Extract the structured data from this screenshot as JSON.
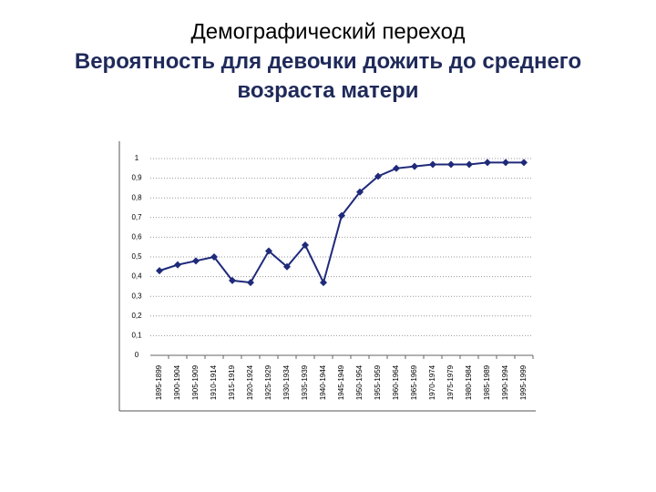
{
  "chart_data": {
    "type": "line",
    "title": "Демографический переход",
    "subtitle": "Вероятность для девочки дожить до среднего возраста матери",
    "categories": [
      "1895-1899",
      "1900-1904",
      "1905-1909",
      "1910-1914",
      "1915-1919",
      "1920-1924",
      "1925-1929",
      "1930-1934",
      "1935-1939",
      "1940-1944",
      "1945-1949",
      "1950-1954",
      "1955-1959",
      "1960-1964",
      "1965-1969",
      "1970-1974",
      "1975-1979",
      "1980-1984",
      "1985-1989",
      "1990-1994",
      "1995-1999"
    ],
    "values": [
      0.43,
      0.46,
      0.48,
      0.5,
      0.38,
      0.37,
      0.53,
      0.45,
      0.56,
      0.37,
      0.71,
      0.83,
      0.91,
      0.95,
      0.96,
      0.97,
      0.97,
      0.97,
      0.98,
      0.98,
      0.98
    ],
    "color": "#1f2a7a",
    "ylim": [
      0,
      1
    ],
    "yticks": [
      0,
      {
        "value": 0.1,
        "label": "0,1"
      },
      {
        "value": 0.2,
        "label": "0,2"
      },
      {
        "value": 0.3,
        "label": "0,3"
      },
      {
        "value": 0.4,
        "label": "0,4"
      },
      {
        "value": 0.5,
        "label": "0,5"
      },
      {
        "value": 0.6,
        "label": "0,6"
      },
      {
        "value": 0.7,
        "label": "0,7"
      },
      {
        "value": 0.8,
        "label": "0,8"
      },
      {
        "value": 0.9,
        "label": "0,9"
      },
      1
    ],
    "grid": true
  }
}
